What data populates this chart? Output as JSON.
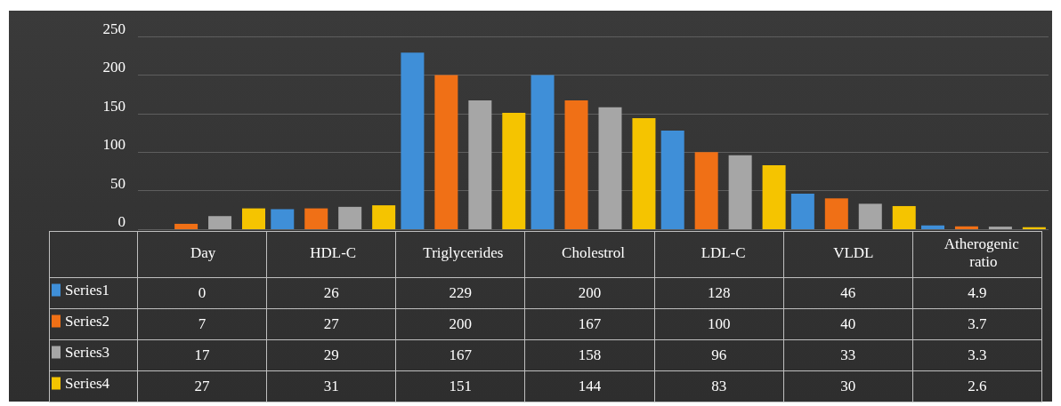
{
  "chart_data": {
    "type": "bar",
    "categories": [
      "Day",
      "HDL-C",
      "Triglycerides",
      "Cholestrol",
      "LDL-C",
      "VLDL",
      "Atherogenic ratio"
    ],
    "series": [
      {
        "name": "Series1",
        "color": "#3f8fd8",
        "values": [
          0,
          26,
          229,
          200,
          128,
          46,
          4.9
        ]
      },
      {
        "name": "Series2",
        "color": "#f07016",
        "values": [
          7,
          27,
          200,
          167,
          100,
          40,
          3.7
        ]
      },
      {
        "name": "Series3",
        "color": "#a6a6a6",
        "values": [
          17,
          29,
          167,
          158,
          96,
          33,
          3.3
        ]
      },
      {
        "name": "Series4",
        "color": "#f5c400",
        "values": [
          27,
          31,
          151,
          144,
          83,
          30,
          2.6
        ]
      }
    ],
    "ylim": [
      0,
      250
    ],
    "yticks": [
      0,
      50,
      100,
      150,
      200,
      250
    ],
    "grid": "y",
    "legend": "bottom left",
    "data_labels": true
  }
}
